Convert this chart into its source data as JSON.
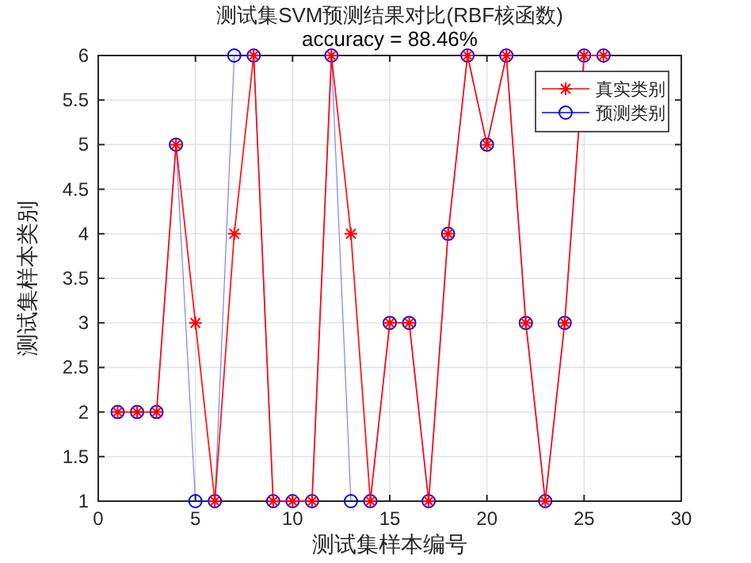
{
  "chart_data": {
    "type": "line",
    "title": "测试集SVM预测结果对比(RBF核函数)",
    "subtitle": "accuracy = 88.46%",
    "xlabel": "测试集样本编号",
    "ylabel": "测试集样本类别",
    "x": [
      1,
      2,
      3,
      4,
      5,
      6,
      7,
      8,
      9,
      10,
      11,
      12,
      13,
      14,
      15,
      16,
      17,
      18,
      19,
      20,
      21,
      22,
      23,
      24,
      25,
      26
    ],
    "series": [
      {
        "name": "真实类别",
        "color": "#ff0000",
        "marker": "cross",
        "values": [
          2,
          2,
          2,
          5,
          3,
          1,
          4,
          6,
          1,
          1,
          1,
          6,
          4,
          1,
          3,
          3,
          1,
          4,
          6,
          5,
          6,
          3,
          1,
          3,
          6,
          6
        ]
      },
      {
        "name": "预测类别",
        "color": "#0000ff",
        "marker": "circle",
        "values": [
          2,
          2,
          2,
          5,
          1,
          1,
          6,
          6,
          1,
          1,
          1,
          6,
          1,
          1,
          3,
          3,
          1,
          4,
          6,
          5,
          6,
          3,
          1,
          3,
          6,
          6
        ]
      }
    ],
    "xlim": [
      0,
      30
    ],
    "xticks": [
      0,
      5,
      10,
      15,
      20,
      25,
      30
    ],
    "ylim": [
      1,
      6
    ],
    "yticks": [
      1,
      1.5,
      2,
      2.5,
      3,
      3.5,
      4,
      4.5,
      5,
      5.5,
      6
    ],
    "grid": true,
    "legend": "top right",
    "line_style": "solid"
  }
}
